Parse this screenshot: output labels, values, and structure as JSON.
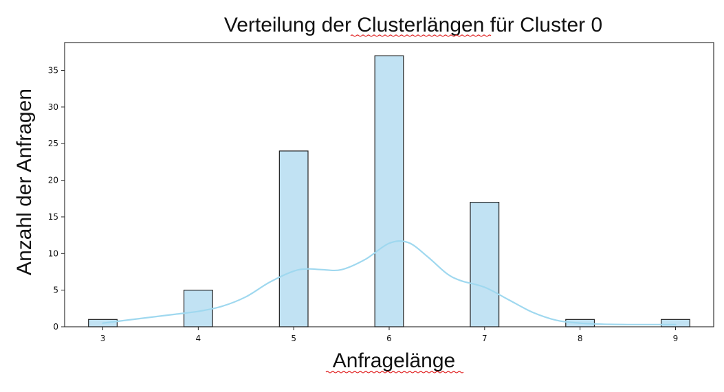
{
  "chart_data": {
    "type": "bar",
    "title": "Verteilung der Clusterlängen für Cluster 0",
    "xlabel": "Anfragelänge",
    "ylabel": "Anzahl der Anfragen",
    "categories": [
      "3",
      "4",
      "5",
      "6",
      "7",
      "8",
      "9"
    ],
    "x": [
      3,
      4,
      5,
      6,
      7,
      8,
      9
    ],
    "values": [
      1,
      5,
      24,
      37,
      17,
      1,
      1
    ],
    "xlim": [
      2.6,
      9.4
    ],
    "ylim": [
      0,
      38.8
    ],
    "xticks": [
      3,
      4,
      5,
      6,
      7,
      8,
      9
    ],
    "yticks": [
      0,
      5,
      10,
      15,
      20,
      25,
      30,
      35
    ],
    "kde": {
      "x": [
        3.0,
        3.25,
        3.5,
        3.75,
        4.0,
        4.25,
        4.5,
        4.75,
        5.0,
        5.15,
        5.3,
        5.5,
        5.75,
        6.0,
        6.2,
        6.4,
        6.6,
        6.75,
        7.0,
        7.25,
        7.5,
        7.75,
        8.0,
        8.25,
        8.5,
        8.75,
        9.0
      ],
      "y": [
        0.5,
        0.9,
        1.3,
        1.7,
        2.1,
        2.8,
        4.1,
        6.1,
        7.6,
        7.9,
        7.8,
        7.8,
        9.2,
        11.4,
        11.5,
        9.6,
        7.3,
        6.3,
        5.4,
        3.7,
        2.0,
        0.9,
        0.5,
        0.35,
        0.3,
        0.3,
        0.3
      ]
    },
    "bar_color": "#c1e2f3",
    "edge_color": "#222222",
    "kde_color": "#9fd8ef",
    "grid": false,
    "legend": "none"
  },
  "spellcheck_marked_words": [
    "Clusterlängen",
    "Anfragelänge"
  ]
}
